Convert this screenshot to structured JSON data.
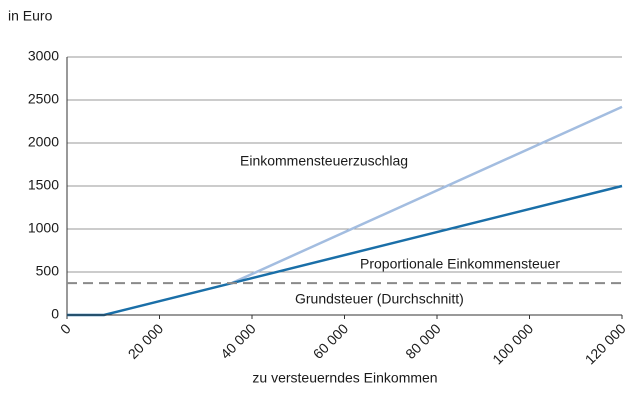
{
  "chart_data": {
    "type": "line",
    "y_label": "in Euro",
    "x_label": "zu versteuerndes Einkommen",
    "annotations": [
      "Einkommensteuerzuschlag",
      "Proportionale Einkommensteuer",
      "Grundsteuer (Durchschnitt)"
    ],
    "series": [
      {
        "color": "#a3bde0",
        "dashed": false,
        "x": [
          35600,
          120000
        ],
        "values": [
          370,
          2420
        ]
      },
      {
        "color": "#1a6fa8",
        "dashed": false,
        "x": [
          0,
          8000,
          120000
        ],
        "values": [
          0,
          0,
          1500
        ]
      },
      {
        "color": "#8a8a8a",
        "dashed": true,
        "x": [
          0,
          120000
        ],
        "values": [
          370,
          370
        ]
      }
    ],
    "xlim": [
      0,
      120000
    ],
    "xticks": [
      0,
      {
        "value": 20000,
        "label": "20 000"
      },
      {
        "value": 40000,
        "label": "40 000"
      },
      {
        "value": 60000,
        "label": "60 000"
      },
      {
        "value": 80000,
        "label": "80 000"
      },
      {
        "value": 100000,
        "label": "100 000"
      },
      {
        "value": 120000,
        "label": "120 000"
      }
    ],
    "ylim": [
      0,
      3000
    ],
    "yticks": [
      0,
      500,
      1000,
      1500,
      2000,
      2500,
      3000
    ],
    "grid": true
  }
}
